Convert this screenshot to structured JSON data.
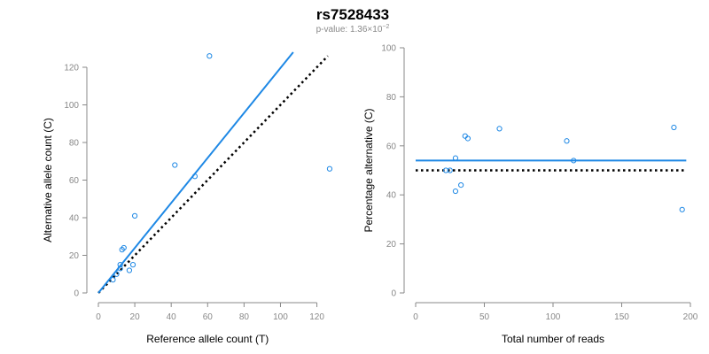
{
  "figure": {
    "title": "rs7528433",
    "subtitle_prefix": "p-value: 1.36×10",
    "subtitle_exponent": "−2"
  },
  "colors": {
    "points": "#1e88e5",
    "fit_line": "#1e88e5",
    "reference_line": "#000000",
    "axis": "#888888"
  },
  "chart_data": [
    {
      "type": "scatter",
      "title": "",
      "xlabel": "Reference allele count (T)",
      "ylabel": "Alternative allele count (C)",
      "xlim": [
        0,
        128
      ],
      "ylim": [
        0,
        128
      ],
      "xticks": [
        0,
        20,
        40,
        60,
        80,
        100,
        120
      ],
      "yticks": [
        0,
        20,
        40,
        60,
        80,
        100,
        120
      ],
      "grid": false,
      "points": [
        {
          "x": 8,
          "y": 7
        },
        {
          "x": 10,
          "y": 10
        },
        {
          "x": 12,
          "y": 13
        },
        {
          "x": 12,
          "y": 15
        },
        {
          "x": 13,
          "y": 23
        },
        {
          "x": 14,
          "y": 24
        },
        {
          "x": 17,
          "y": 12
        },
        {
          "x": 19,
          "y": 15
        },
        {
          "x": 20,
          "y": 41
        },
        {
          "x": 42,
          "y": 68
        },
        {
          "x": 53,
          "y": 62
        },
        {
          "x": 61,
          "y": 126
        },
        {
          "x": 127,
          "y": 66
        }
      ],
      "fit_line": {
        "x": [
          0,
          107
        ],
        "y": [
          0,
          128
        ]
      },
      "reference_line": {
        "x": [
          0,
          126
        ],
        "y": [
          0,
          126
        ]
      }
    },
    {
      "type": "scatter",
      "title": "",
      "xlabel": "Total number of reads",
      "ylabel": "Percentage alternative (C)",
      "xlim": [
        0,
        200
      ],
      "ylim": [
        0,
        100
      ],
      "xticks": [
        0,
        50,
        100,
        150,
        200
      ],
      "yticks": [
        0,
        20,
        40,
        60,
        80,
        100
      ],
      "grid": false,
      "points": [
        {
          "x": 22,
          "y": 50
        },
        {
          "x": 25,
          "y": 50
        },
        {
          "x": 29,
          "y": 55
        },
        {
          "x": 29,
          "y": 41.5
        },
        {
          "x": 33,
          "y": 44
        },
        {
          "x": 36,
          "y": 64
        },
        {
          "x": 38,
          "y": 63
        },
        {
          "x": 61,
          "y": 67
        },
        {
          "x": 110,
          "y": 62
        },
        {
          "x": 115,
          "y": 54
        },
        {
          "x": 188,
          "y": 67.5
        },
        {
          "x": 194,
          "y": 34
        }
      ],
      "fit_line": {
        "x": [
          0,
          197
        ],
        "y": [
          54,
          54
        ]
      },
      "reference_line": {
        "x": [
          0,
          197
        ],
        "y": [
          50,
          50
        ]
      }
    }
  ]
}
